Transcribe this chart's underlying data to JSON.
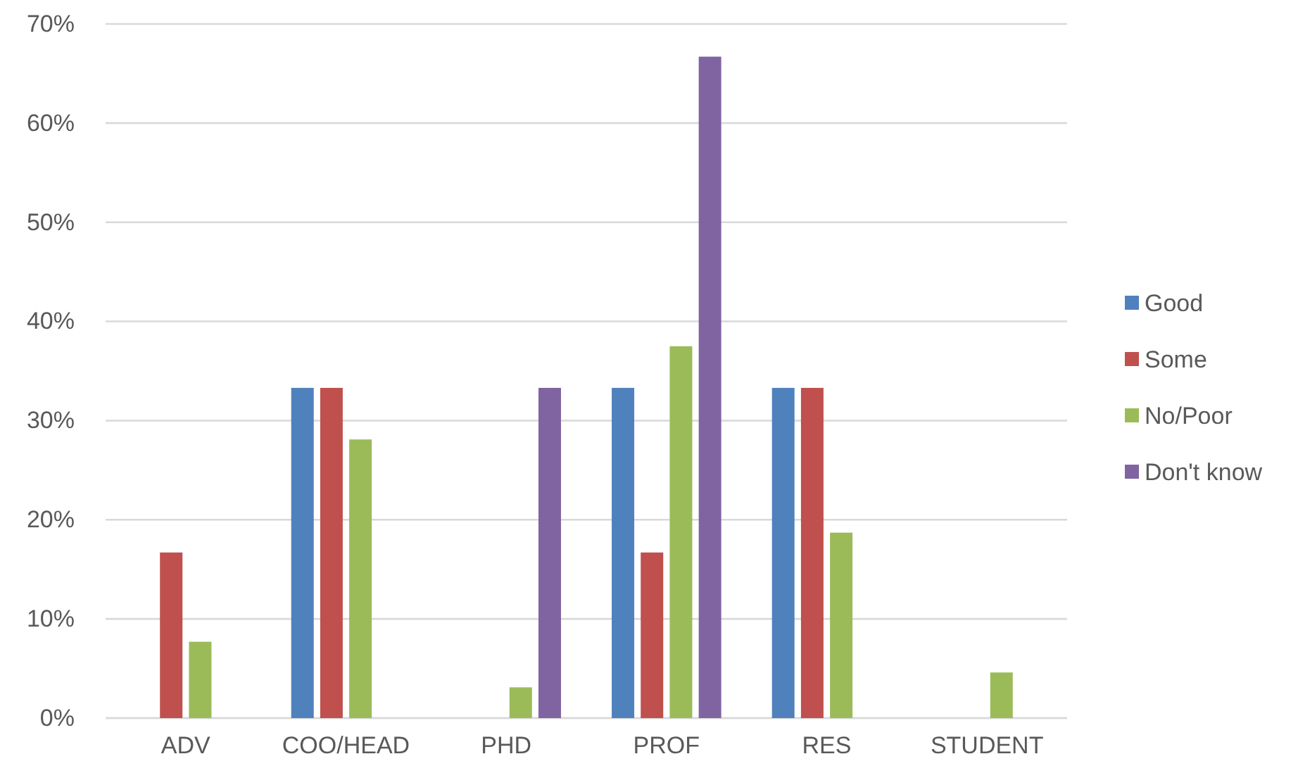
{
  "chart_data": {
    "type": "bar",
    "categories": [
      "ADV",
      "COO/HEAD",
      "PHD",
      "PROF",
      "RES",
      "STUDENT"
    ],
    "series": [
      {
        "name": "Good",
        "color": "#4f81bd",
        "values": [
          null,
          33.3,
          null,
          33.3,
          33.3,
          null
        ]
      },
      {
        "name": "Some",
        "color": "#c0504d",
        "values": [
          16.7,
          33.3,
          null,
          16.7,
          33.3,
          null
        ]
      },
      {
        "name": "No/Poor",
        "color": "#9bbb59",
        "values": [
          7.7,
          28.1,
          3.1,
          37.5,
          18.7,
          4.6
        ]
      },
      {
        "name": "Don't know",
        "color": "#8064a2",
        "values": [
          null,
          null,
          33.3,
          66.7,
          null,
          null
        ]
      }
    ],
    "ylim": [
      0,
      70
    ],
    "yticks": [
      {
        "value": 0,
        "label": "0%"
      },
      {
        "value": 10,
        "label": "10%"
      },
      {
        "value": 20,
        "label": "20%"
      },
      {
        "value": 30,
        "label": "30%"
      },
      {
        "value": 40,
        "label": "40%"
      },
      {
        "value": 50,
        "label": "50%"
      },
      {
        "value": 60,
        "label": "60%"
      },
      {
        "value": 70,
        "label": "70%"
      }
    ],
    "grid": "y",
    "legend": "right"
  }
}
